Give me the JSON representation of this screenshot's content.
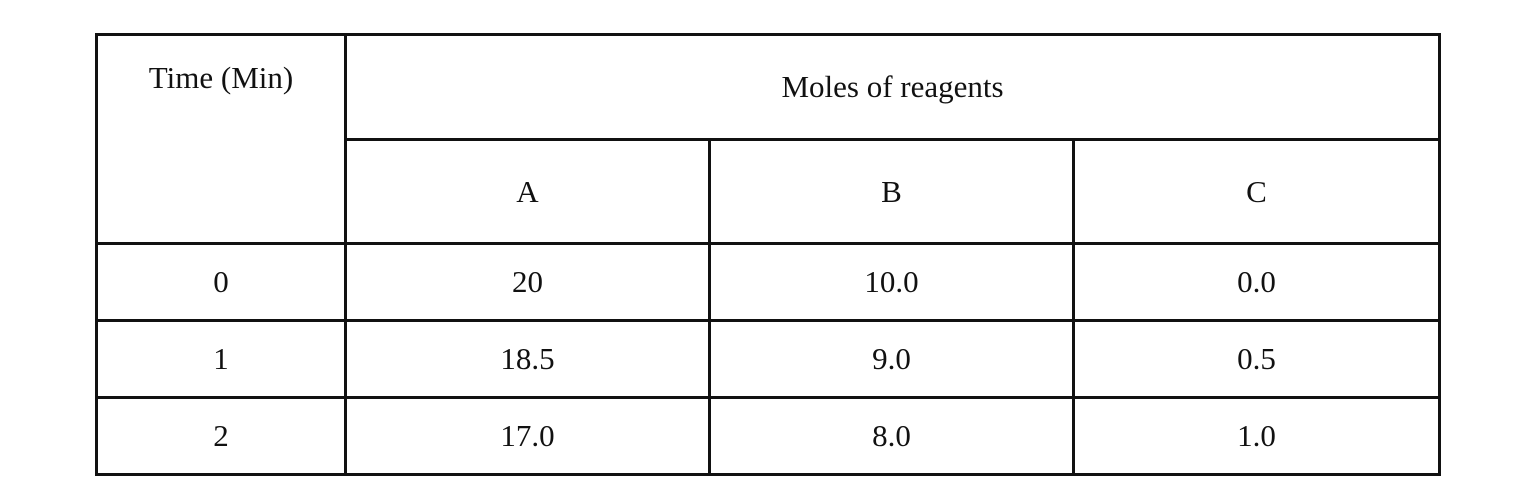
{
  "table": {
    "time_header": "Time (Min)",
    "group_header": "Moles of reagents",
    "columns": [
      "A",
      "B",
      "C"
    ],
    "rows": [
      {
        "time": "0",
        "values": [
          "20",
          "10.0",
          "0.0"
        ]
      },
      {
        "time": "1",
        "values": [
          "18.5",
          "9.0",
          "0.5"
        ]
      },
      {
        "time": "2",
        "values": [
          "17.0",
          "8.0",
          "1.0"
        ]
      }
    ]
  }
}
